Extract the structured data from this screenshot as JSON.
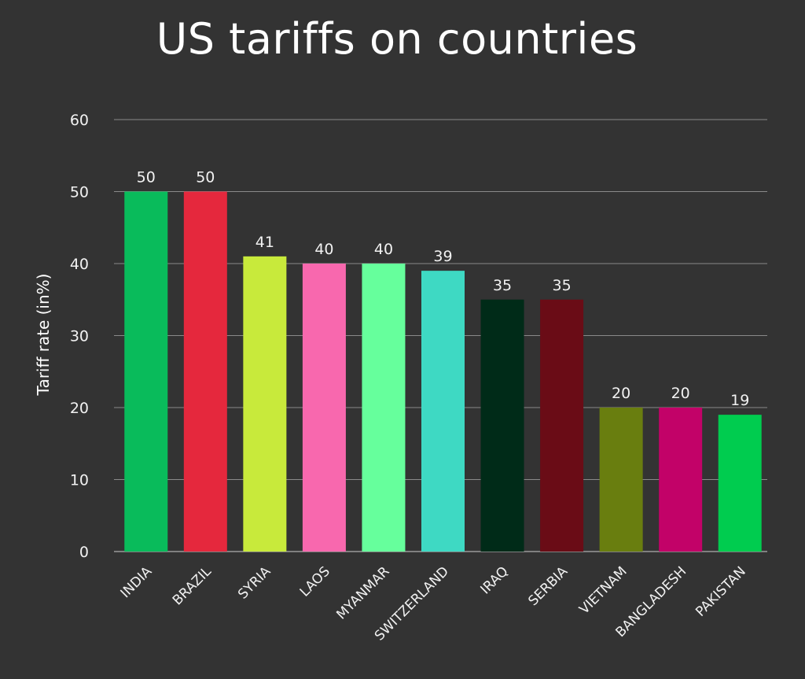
{
  "chart_data": {
    "type": "bar",
    "title": "US tariffs on countries",
    "xlabel": "",
    "ylabel": "Tariff rate (in%)",
    "ylim": [
      0,
      60
    ],
    "yticks": [
      0,
      10,
      20,
      30,
      40,
      50,
      60
    ],
    "grid": true,
    "categories": [
      "INDIA",
      "BRAZIL",
      "SYRIA",
      "LAOS",
      "MYANMAR",
      "SWITZERLAND",
      "IRAQ",
      "SERBIA",
      "VIETNAM",
      "BANGLADESH",
      "PAKISTAN"
    ],
    "values": [
      50,
      50,
      41,
      40,
      40,
      39,
      35,
      35,
      20,
      20,
      19
    ],
    "colors": [
      "#09bb5b",
      "#e5283d",
      "#c8ea3b",
      "#f868ae",
      "#66ff9c",
      "#3ed9c3",
      "#002b18",
      "#6a0c16",
      "#697e0f",
      "#c20268",
      "#00cc4f"
    ]
  }
}
